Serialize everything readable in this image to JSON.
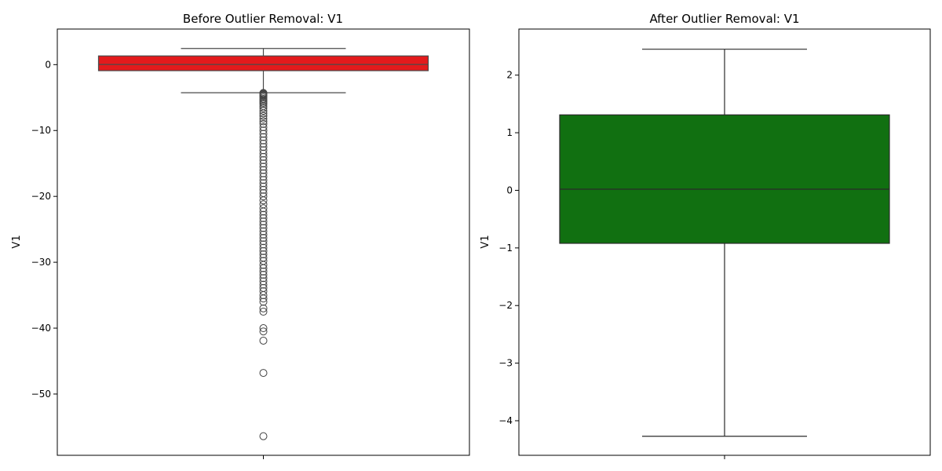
{
  "chart_data": [
    {
      "type": "box",
      "title": "Before Outlier Removal: V1",
      "ylabel": "V1",
      "xlabel": "",
      "ylim": [
        -59.3,
        5.4
      ],
      "yticks": [
        0,
        -10,
        -20,
        -30,
        -40,
        -50
      ],
      "ytick_labels": [
        "0",
        "−10",
        "−20",
        "−30",
        "−40",
        "−50"
      ],
      "grid": false,
      "box_color": "#e31a1c",
      "line_color": "#4a4a4a",
      "box": {
        "q1": -0.92,
        "median": 0.02,
        "q3": 1.32,
        "whisker_low": -4.27,
        "whisker_high": 2.45
      },
      "outliers": [
        -4.3,
        -4.35,
        -4.4,
        -4.5,
        -4.6,
        -4.7,
        -4.8,
        -5.0,
        -5.2,
        -5.4,
        -5.6,
        -5.8,
        -6.0,
        -6.3,
        -6.6,
        -7.0,
        -7.4,
        -7.8,
        -8.2,
        -8.6,
        -9.0,
        -9.5,
        -10.0,
        -10.5,
        -11.0,
        -11.5,
        -12.0,
        -12.5,
        -13.0,
        -13.5,
        -14.0,
        -14.5,
        -15.0,
        -15.5,
        -16.0,
        -16.5,
        -17.0,
        -17.5,
        -18.0,
        -18.5,
        -19.0,
        -19.5,
        -20.0,
        -20.6,
        -21.2,
        -21.8,
        -22.3,
        -22.8,
        -23.3,
        -23.8,
        -24.3,
        -24.8,
        -25.3,
        -25.8,
        -26.3,
        -26.8,
        -27.3,
        -27.8,
        -28.3,
        -28.8,
        -29.3,
        -29.8,
        -30.4,
        -30.9,
        -31.4,
        -31.9,
        -32.4,
        -32.9,
        -33.4,
        -33.9,
        -34.4,
        -35.0,
        -35.5,
        -36.0,
        -37.0,
        -37.5,
        -40.0,
        -40.5,
        -41.9,
        -46.8,
        -56.4
      ]
    },
    {
      "type": "box",
      "title": "After Outlier Removal: V1",
      "ylabel": "V1",
      "xlabel": "",
      "ylim": [
        -4.6,
        2.8
      ],
      "yticks": [
        2,
        1,
        0,
        -1,
        -2,
        -3,
        -4
      ],
      "ytick_labels": [
        "2",
        "1",
        "0",
        "−1",
        "−2",
        "−3",
        "−4"
      ],
      "grid": false,
      "box_color": "#117011",
      "line_color": "#2a2a2a",
      "box": {
        "q1": -0.92,
        "median": 0.02,
        "q3": 1.31,
        "whisker_low": -4.27,
        "whisker_high": 2.45
      },
      "outliers": []
    }
  ]
}
